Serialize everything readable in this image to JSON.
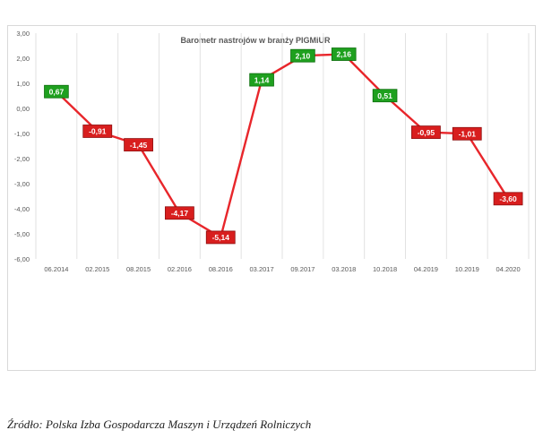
{
  "chart_data": {
    "type": "line",
    "title": "Barometr nastrojów w branży PIGMiUR",
    "xlabel": "",
    "ylabel": "",
    "categories": [
      "06.2014",
      "02.2015",
      "08.2015",
      "02.2016",
      "08.2016",
      "03.2017",
      "09.2017",
      "03.2018",
      "10.2018",
      "04.2019",
      "10.2019",
      "04.2020"
    ],
    "series": [
      {
        "values": [
          0.67,
          -0.91,
          -1.45,
          -4.17,
          -5.14,
          1.14,
          2.1,
          2.16,
          0.51,
          -0.95,
          -1.01,
          -3.6
        ],
        "labels": [
          "0,67",
          "-0,91",
          "-1,45",
          "-4,17",
          "-5,14",
          "1,14",
          "2,10",
          "2,16",
          "0,51",
          "-0,95",
          "-1,01",
          "-3,60"
        ]
      }
    ],
    "ylim": [
      -6,
      3
    ],
    "yticks": [
      3,
      2,
      1,
      0,
      -1,
      -2,
      -3,
      -4,
      -5,
      -6
    ],
    "ytick_labels": [
      "3,00",
      "2,00",
      "1,00",
      "0,00",
      "-1,00",
      "-2,00",
      "-3,00",
      "-4,00",
      "-5,00",
      "-6,00"
    ],
    "grid": "vertical",
    "colors": {
      "line": "#e8262b",
      "positive_label": "#1fa01f",
      "negative_label": "#d81e1e",
      "grid": "#e2e2e2",
      "tick_text": "#595959"
    }
  },
  "source_note": "Źródło: Polska Izba Gospodarcza Maszyn i Urządzeń Rolniczych"
}
